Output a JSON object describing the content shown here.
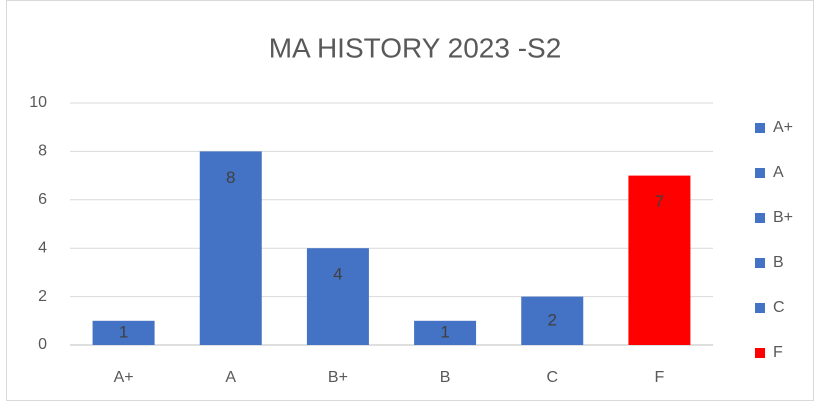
{
  "chart_data": {
    "type": "bar",
    "title": "MA HISTORY 2023 -S2",
    "categories": [
      "A+",
      "A",
      "B+",
      "B",
      "C",
      "F"
    ],
    "values": [
      1,
      8,
      4,
      1,
      2,
      7
    ],
    "colors": [
      "#4472c4",
      "#4472c4",
      "#4472c4",
      "#4472c4",
      "#4472c4",
      "#ff0000"
    ],
    "ylim": [
      0,
      10
    ],
    "yticks": [
      0,
      2,
      4,
      6,
      8,
      10
    ],
    "grid": true,
    "data_labels": true,
    "legend": "right"
  }
}
